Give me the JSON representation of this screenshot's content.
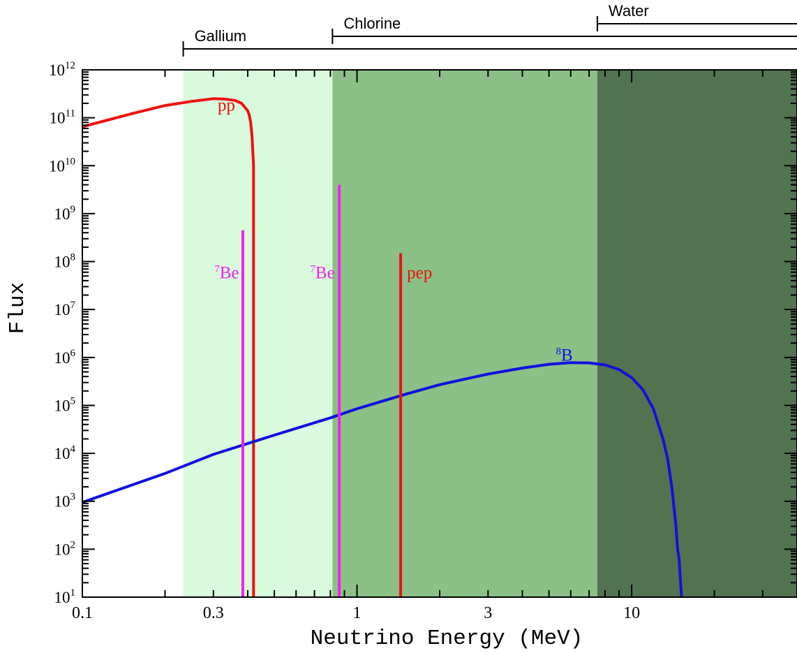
{
  "chart_data": {
    "type": "line",
    "title": "",
    "xlabel": "Neutrino Energy (MeV)",
    "ylabel": "Flux",
    "x_scale": "log",
    "y_scale": "log",
    "xlim": [
      0.1,
      40
    ],
    "ylim": [
      10,
      1000000000000
    ],
    "x_ticks": [
      {
        "value": 0.1,
        "label": "0.1"
      },
      {
        "value": 0.3,
        "label": "0.3"
      },
      {
        "value": 1,
        "label": "1"
      },
      {
        "value": 3,
        "label": "3"
      },
      {
        "value": 10,
        "label": "10"
      }
    ],
    "y_ticks": [
      {
        "value": 10,
        "base": "10",
        "exp": "1"
      },
      {
        "value": 100,
        "base": "10",
        "exp": "2"
      },
      {
        "value": 1000,
        "base": "10",
        "exp": "3"
      },
      {
        "value": 10000,
        "base": "10",
        "exp": "4"
      },
      {
        "value": 100000,
        "base": "10",
        "exp": "5"
      },
      {
        "value": 1000000,
        "base": "10",
        "exp": "6"
      },
      {
        "value": 10000000,
        "base": "10",
        "exp": "7"
      },
      {
        "value": 100000000,
        "base": "10",
        "exp": "8"
      },
      {
        "value": 1000000000,
        "base": "10",
        "exp": "9"
      },
      {
        "value": 10000000000,
        "base": "10",
        "exp": "10"
      },
      {
        "value": 100000000000,
        "base": "10",
        "exp": "11"
      },
      {
        "value": 1000000000000,
        "base": "10",
        "exp": "12"
      }
    ],
    "threshold_bands": [
      {
        "name": "Gallium",
        "threshold": 0.233,
        "color": "#d9fadc"
      },
      {
        "name": "Chlorine",
        "threshold": 0.814,
        "color": "#8bc087"
      },
      {
        "name": "Water",
        "threshold": 7.5,
        "color": "#517350"
      }
    ],
    "series": [
      {
        "name": "pp",
        "kind": "continuum",
        "color": "#ee1111",
        "x": [
          0.1,
          0.15,
          0.2,
          0.25,
          0.3,
          0.33,
          0.36,
          0.38,
          0.4,
          0.405,
          0.41,
          0.415,
          0.42,
          0.42
        ],
        "y": [
          65000000000,
          120000000000,
          180000000000,
          220000000000,
          250000000000,
          245000000000,
          230000000000,
          200000000000,
          140000000000,
          115000000000,
          80000000000,
          40000000000,
          10000000000,
          10
        ]
      },
      {
        "name": "8B",
        "kind": "continuum",
        "color": "#1111dd",
        "x": [
          0.1,
          0.2,
          0.3,
          0.5,
          0.8,
          1,
          1.5,
          2,
          3,
          4,
          5,
          6,
          7,
          8,
          9,
          10,
          11,
          12,
          13,
          13.5,
          14,
          14.5,
          14.7,
          14.9,
          15,
          15.2
        ],
        "y": [
          950,
          3800,
          9500,
          24000,
          55000,
          85000,
          170000,
          270000,
          450000,
          600000,
          720000,
          780000,
          770000,
          700000,
          560000,
          380000,
          210000,
          85000,
          20000,
          8000,
          2000,
          300,
          100,
          60,
          30,
          10
        ]
      },
      {
        "name": "7Be",
        "kind": "line",
        "color": "#ee22ee",
        "energy": 0.384,
        "flux": 450000000
      },
      {
        "name": "7Be",
        "kind": "line",
        "color": "#ee22ee",
        "energy": 0.862,
        "flux": 4000000000
      },
      {
        "name": "pep",
        "kind": "line",
        "color": "#ee1111",
        "energy": 1.442,
        "flux": 150000000
      }
    ],
    "annotations": [
      {
        "text": "pp",
        "sup": "",
        "color": "#ee1111",
        "x": 0.36,
        "y": 140000000000,
        "anchor": "end"
      },
      {
        "text": "Be",
        "sup": "7",
        "color": "#ee22ee",
        "x": 0.372,
        "y": 45000000,
        "anchor": "end"
      },
      {
        "text": "Be",
        "sup": "7",
        "color": "#ee22ee",
        "x": 0.83,
        "y": 45000000,
        "anchor": "end"
      },
      {
        "text": "pep",
        "sup": "",
        "color": "#ee1111",
        "x": 1.52,
        "y": 45000000,
        "anchor": "start"
      },
      {
        "text": "B",
        "sup": "8",
        "color": "#1111dd",
        "x": 5.3,
        "y": 850000,
        "anchor": "start"
      }
    ]
  }
}
